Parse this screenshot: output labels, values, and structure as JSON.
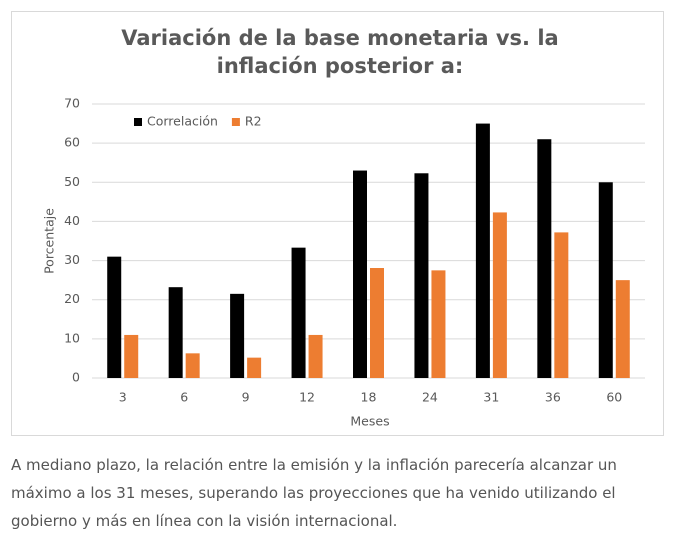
{
  "chart_data": {
    "type": "bar",
    "title": "Variación de la base monetaria vs. la inflación posterior a:",
    "xlabel": "Meses",
    "ylabel": "Porcentaje",
    "categories": [
      "3",
      "6",
      "9",
      "12",
      "18",
      "24",
      "31",
      "36",
      "60"
    ],
    "series": [
      {
        "name": "Correlación",
        "color": "#000000",
        "values": [
          31,
          23.2,
          21.5,
          33.3,
          53,
          52.3,
          65,
          61,
          50
        ]
      },
      {
        "name": "R2",
        "color": "#ed7d31",
        "values": [
          11,
          6.3,
          5.2,
          11,
          28.1,
          27.5,
          42.3,
          37.2,
          25
        ]
      }
    ],
    "ylim": [
      0,
      70
    ],
    "yticks": [
      0,
      10,
      20,
      30,
      40,
      50,
      60,
      70
    ],
    "grid": true,
    "legend": "upper left"
  },
  "caption": "A mediano plazo, la relación entre la emisión y la inflación parecería alcanzar un máximo a los 31 meses, superando las proyecciones que ha venido utilizando el gobierno y más en línea con la visión internacional."
}
